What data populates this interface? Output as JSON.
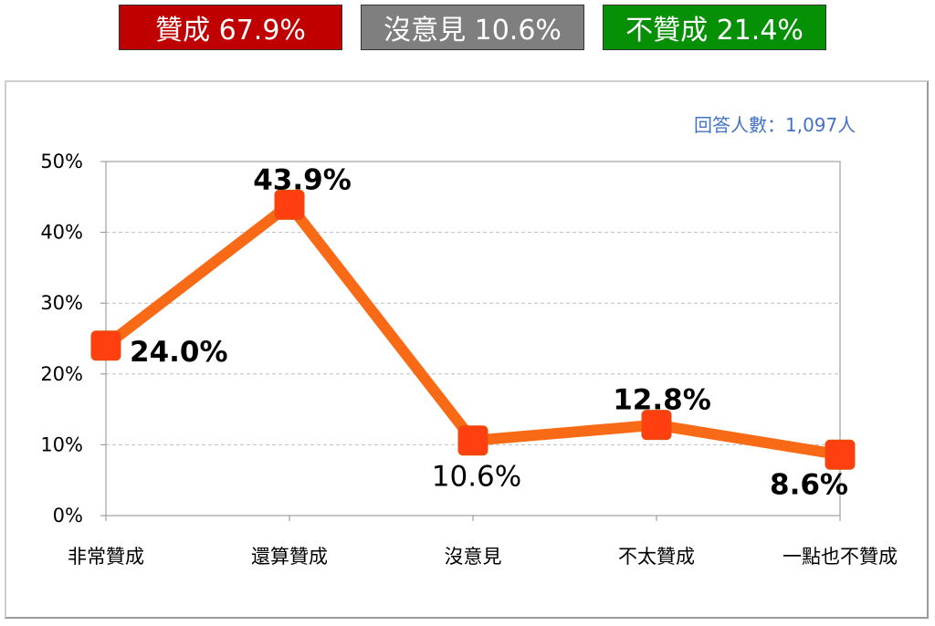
{
  "summary": {
    "agree": {
      "label": "贊成 67.9%",
      "color": "#c00000"
    },
    "neutral": {
      "label": "沒意見 10.6%",
      "color": "#7f7f7f"
    },
    "disagree": {
      "label": "不贊成 21.4%",
      "color": "#069006"
    }
  },
  "respondents_label": "回答人數：1,097人",
  "chart_data": {
    "type": "line",
    "categories": [
      "非常贊成",
      "還算贊成",
      "沒意見",
      "不太贊成",
      "一點也不贊成"
    ],
    "series": [
      {
        "values": [
          24.0,
          43.9,
          10.6,
          12.8,
          8.6
        ],
        "color": "#f96a16",
        "marker_color": "#ff3f0f"
      }
    ],
    "data_labels": [
      "24.0%",
      "43.9%",
      "10.6%",
      "12.8%",
      "8.6%"
    ],
    "yticks": [
      "0%",
      "10%",
      "20%",
      "30%",
      "40%",
      "50%"
    ],
    "ylim": [
      0,
      50
    ],
    "y_unit": "%",
    "grid": "horizontal dashed"
  }
}
